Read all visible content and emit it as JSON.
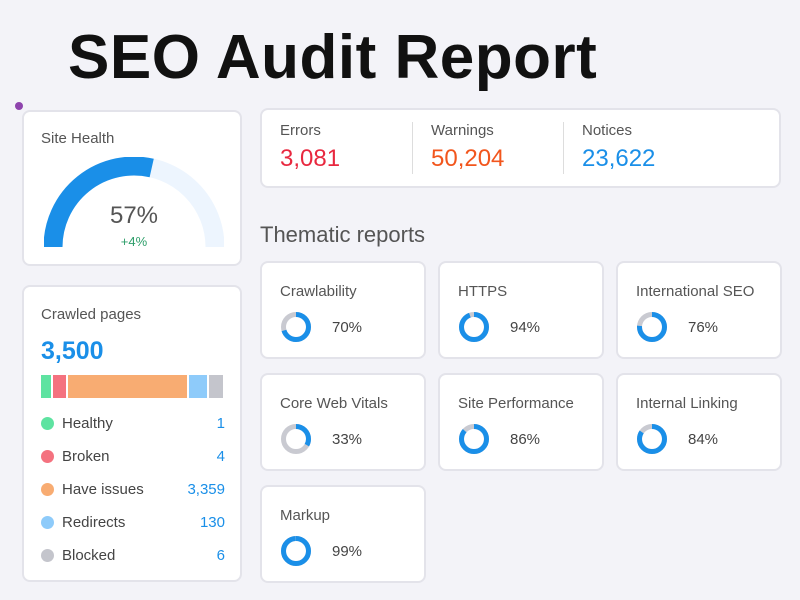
{
  "title": "SEO Audit Report",
  "site_health": {
    "label": "Site Health",
    "value": "57%",
    "percent": 57,
    "delta": "+4%",
    "color": "#1a8fe8"
  },
  "crawled": {
    "label": "Crawled pages",
    "total": "3,500",
    "items": [
      {
        "label": "Healthy",
        "value": "1",
        "color": "#5ee3a1"
      },
      {
        "label": "Broken",
        "value": "4",
        "color": "#f4727f"
      },
      {
        "label": "Have issues",
        "value": "3,359",
        "color": "#f8ac72"
      },
      {
        "label": "Redirects",
        "value": "130",
        "color": "#8ecbfa"
      },
      {
        "label": "Blocked",
        "value": "6",
        "color": "#c4c5cc"
      }
    ]
  },
  "stats": [
    {
      "label": "Errors",
      "value": "3,081",
      "color": "#e8283f"
    },
    {
      "label": "Warnings",
      "value": "50,204",
      "color": "#f2561d"
    },
    {
      "label": "Notices",
      "value": "23,622",
      "color": "#1a8fe8"
    }
  ],
  "thematic": {
    "heading": "Thematic reports",
    "reports": [
      {
        "label": "Crawlability",
        "value": "70%",
        "percent": 70
      },
      {
        "label": "HTTPS",
        "value": "94%",
        "percent": 94
      },
      {
        "label": "International SEO",
        "value": "76%",
        "percent": 76
      },
      {
        "label": "Core Web Vitals",
        "value": "33%",
        "percent": 33
      },
      {
        "label": "Site Performance",
        "value": "86%",
        "percent": 86
      },
      {
        "label": "Internal Linking",
        "value": "84%",
        "percent": 84
      },
      {
        "label": "Markup",
        "value": "99%",
        "percent": 99
      }
    ]
  }
}
